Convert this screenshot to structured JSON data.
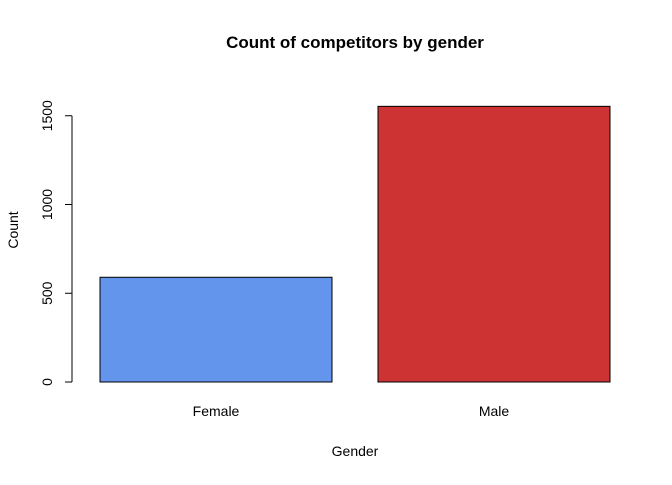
{
  "chart_data": {
    "type": "bar",
    "title": "Count of competitors by gender",
    "xlabel": "Gender",
    "ylabel": "Count",
    "categories": [
      "Female",
      "Male"
    ],
    "values": [
      590,
      1553
    ],
    "colors": [
      "#6495ED",
      "#CD3333"
    ],
    "ylim": [
      0,
      1600
    ],
    "yticks": [
      0,
      500,
      1000,
      1500
    ],
    "ytick_labels": [
      "0",
      "500",
      "1000",
      "1500"
    ],
    "grid": false,
    "legend": "none"
  }
}
